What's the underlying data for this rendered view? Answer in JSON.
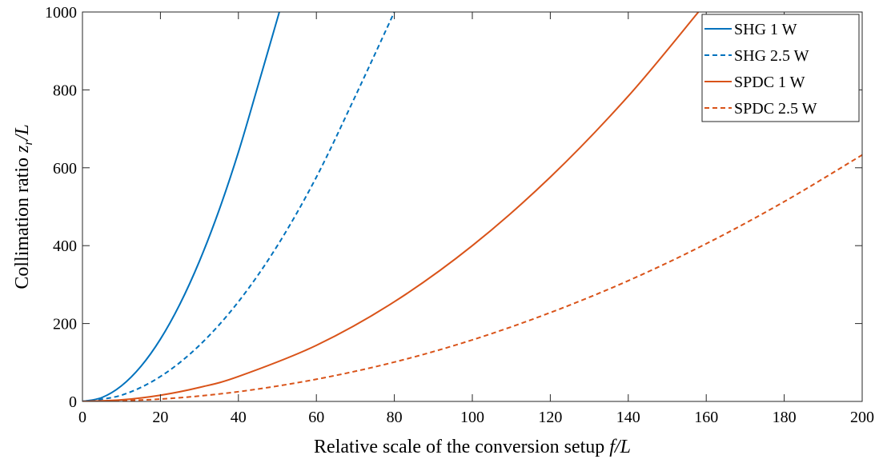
{
  "chart_data": {
    "type": "line",
    "title": "",
    "xlabel": "Relative scale of the conversion setup f/L",
    "ylabel": "Collimation ratio z_r/L",
    "xlabel_parts": {
      "text": "Relative scale of the conversion setup ",
      "math": "f/L"
    },
    "ylabel_parts": {
      "text": "Collimation ratio ",
      "math_var": "z",
      "math_sub": "r",
      "math_tail": "/L"
    },
    "xlim": [
      0,
      200
    ],
    "ylim": [
      0,
      1000
    ],
    "xticks": [
      0,
      20,
      40,
      60,
      80,
      100,
      120,
      140,
      160,
      180,
      200
    ],
    "yticks": [
      0,
      200,
      400,
      600,
      800,
      1000
    ],
    "xtick_labels": [
      "0",
      "20",
      "40",
      "60",
      "80",
      "100",
      "120",
      "140",
      "160",
      "180",
      "200"
    ],
    "ytick_labels": [
      "0",
      "200",
      "400",
      "600",
      "800",
      "1000"
    ],
    "grid": false,
    "legend_position": "top-right",
    "series": [
      {
        "name": "SHG 1 W",
        "color": "#0072BD",
        "style": "solid",
        "x": [
          0,
          5,
          10,
          15,
          20,
          25,
          30,
          35,
          40,
          45,
          50.5
        ],
        "y": [
          0,
          10,
          40,
          90,
          160,
          250,
          360,
          490,
          640,
          810,
          1000
        ]
      },
      {
        "name": "SHG 2.5 W",
        "color": "#0072BD",
        "style": "dashed",
        "x": [
          0,
          10,
          20,
          30,
          40,
          50,
          60,
          70,
          80
        ],
        "y": [
          0,
          16,
          64,
          144,
          256,
          400,
          576,
          784,
          1000
        ]
      },
      {
        "name": "SPDC 1 W",
        "color": "#D95319",
        "style": "solid",
        "x": [
          0,
          10,
          20,
          30,
          40,
          60,
          80,
          100,
          120,
          140,
          158
        ],
        "y": [
          0,
          4,
          16,
          36,
          64,
          144,
          256,
          400,
          576,
          784,
          1000
        ]
      },
      {
        "name": "SPDC 2.5 W",
        "color": "#D95319",
        "style": "dashed",
        "x": [
          0,
          20,
          40,
          60,
          80,
          100,
          120,
          140,
          160,
          180,
          200
        ],
        "y": [
          0,
          6,
          25,
          57,
          101,
          158,
          228,
          310,
          405,
          513,
          633
        ]
      }
    ]
  }
}
